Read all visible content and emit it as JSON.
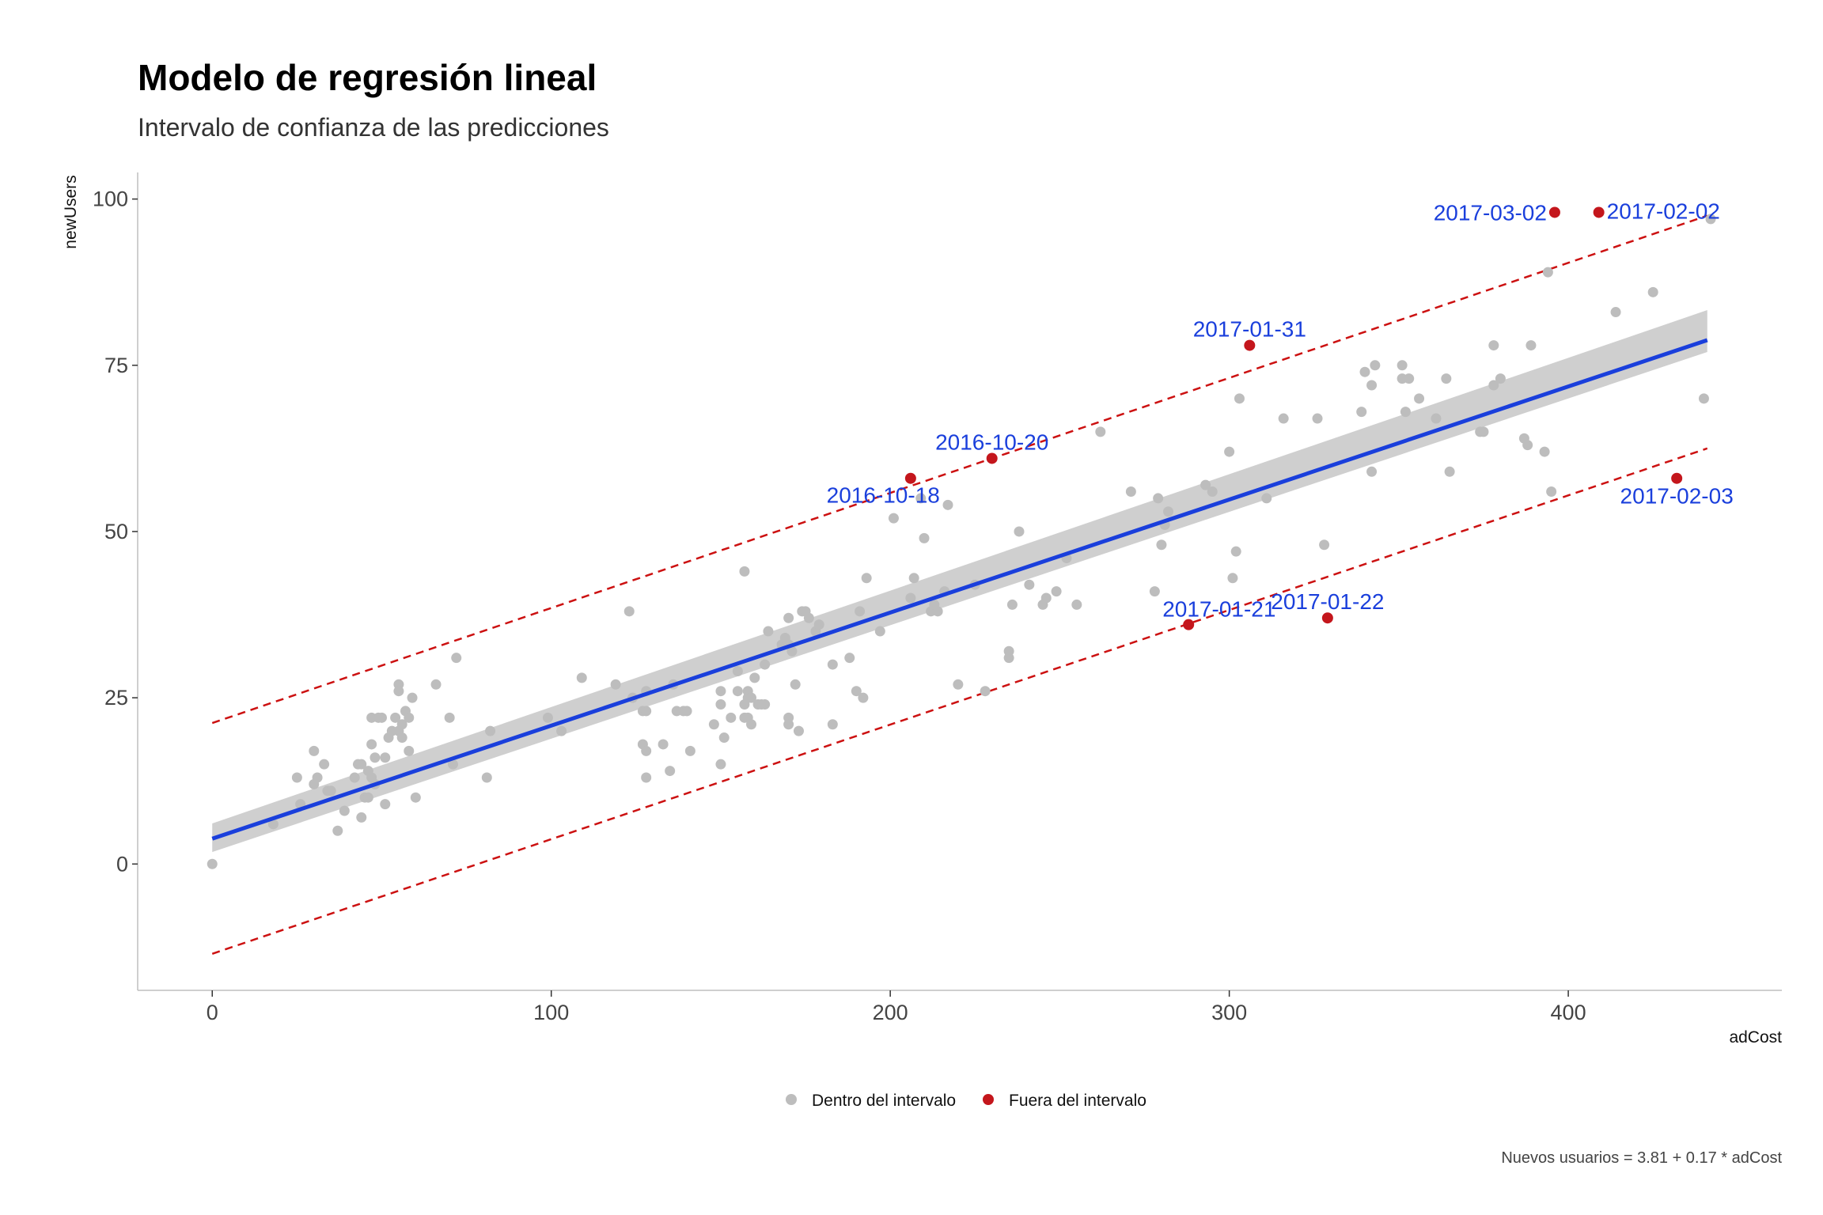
{
  "colors": {
    "inside": "#bdbdbd",
    "outside": "#c4161c",
    "regression_line": "#1a3fdc",
    "confidence_band": "#cfcfcf",
    "interval_lines": "#cc1111",
    "point_labels": "#1a3fdc",
    "axis": "#bfbfbf"
  },
  "chart_data": {
    "type": "scatter",
    "title": "Modelo de regresión lineal",
    "subtitle": "Intervalo de confianza de las predicciones",
    "xlabel": "adCost",
    "ylabel": "newUsers",
    "caption": "Nuevos usuarios = 3.81 + 0.17 * adCost",
    "xlim": [
      -22,
      463
    ],
    "ylim": [
      -19,
      104
    ],
    "x_ticks": [
      0,
      100,
      200,
      300,
      400
    ],
    "y_ticks": [
      0,
      25,
      50,
      75,
      100
    ],
    "grid": false,
    "legend_position": "bottom",
    "legend": [
      {
        "label": "Dentro del intervalo",
        "color_key": "inside"
      },
      {
        "label": "Fuera del intervalo",
        "color_key": "outside"
      }
    ],
    "regression": {
      "intercept": 3.81,
      "slope": 0.17,
      "x_range": [
        0,
        441
      ],
      "confidence_band": {
        "x": [
          0,
          441
        ],
        "lower": [
          1.8,
          77.0
        ],
        "upper": [
          6.1,
          83.3
        ]
      }
    },
    "prediction_interval": {
      "lower": {
        "x": [
          0,
          441
        ],
        "y": [
          -13.5,
          62.5
        ]
      },
      "upper": {
        "x": [
          0,
          441
        ],
        "y": [
          21.2,
          97.5
        ]
      }
    },
    "series": [
      {
        "name": "Dentro del intervalo",
        "points": [
          [
            0,
            0
          ],
          [
            18,
            6
          ],
          [
            25,
            13
          ],
          [
            26,
            9
          ],
          [
            30,
            17
          ],
          [
            30,
            12
          ],
          [
            31,
            13
          ],
          [
            33,
            15
          ],
          [
            34,
            11
          ],
          [
            35,
            11
          ],
          [
            37,
            5
          ],
          [
            39,
            8
          ],
          [
            42,
            13
          ],
          [
            43,
            15
          ],
          [
            44,
            7
          ],
          [
            44,
            15
          ],
          [
            45,
            10
          ],
          [
            46,
            14
          ],
          [
            46,
            10
          ],
          [
            47,
            13
          ],
          [
            47,
            18
          ],
          [
            47,
            22
          ],
          [
            48,
            12
          ],
          [
            48,
            16
          ],
          [
            49,
            22
          ],
          [
            50,
            22
          ],
          [
            51,
            16
          ],
          [
            51,
            9
          ],
          [
            52,
            19
          ],
          [
            53,
            20
          ],
          [
            54,
            22
          ],
          [
            55,
            27
          ],
          [
            55,
            26
          ],
          [
            55,
            20
          ],
          [
            56,
            19
          ],
          [
            56,
            21
          ],
          [
            57,
            23
          ],
          [
            58,
            22
          ],
          [
            58,
            17
          ],
          [
            59,
            25
          ],
          [
            60,
            10
          ],
          [
            66,
            27
          ],
          [
            70,
            22
          ],
          [
            71,
            15
          ],
          [
            72,
            31
          ],
          [
            81,
            13
          ],
          [
            82,
            20
          ],
          [
            99,
            22
          ],
          [
            103,
            20
          ],
          [
            109,
            28
          ],
          [
            119,
            27
          ],
          [
            123,
            38
          ],
          [
            124,
            25
          ],
          [
            127,
            18
          ],
          [
            127,
            23
          ],
          [
            128,
            17
          ],
          [
            128,
            13
          ],
          [
            128,
            26
          ],
          [
            128,
            23
          ],
          [
            133,
            18
          ],
          [
            135,
            14
          ],
          [
            136,
            27
          ],
          [
            137,
            23
          ],
          [
            139,
            23
          ],
          [
            140,
            23
          ],
          [
            141,
            17
          ],
          [
            148,
            21
          ],
          [
            150,
            15
          ],
          [
            150,
            24
          ],
          [
            150,
            26
          ],
          [
            151,
            19
          ],
          [
            153,
            22
          ],
          [
            155,
            29
          ],
          [
            155,
            26
          ],
          [
            157,
            24
          ],
          [
            157,
            22
          ],
          [
            157,
            44
          ],
          [
            158,
            26
          ],
          [
            158,
            22
          ],
          [
            158,
            25
          ],
          [
            159,
            25
          ],
          [
            159,
            21
          ],
          [
            160,
            28
          ],
          [
            161,
            24
          ],
          [
            162,
            24
          ],
          [
            163,
            24
          ],
          [
            163,
            30
          ],
          [
            164,
            35
          ],
          [
            168,
            33
          ],
          [
            169,
            34
          ],
          [
            170,
            37
          ],
          [
            170,
            33
          ],
          [
            170,
            22
          ],
          [
            170,
            21
          ],
          [
            171,
            32
          ],
          [
            172,
            27
          ],
          [
            173,
            20
          ],
          [
            174,
            38
          ],
          [
            175,
            38
          ],
          [
            176,
            37
          ],
          [
            178,
            35
          ],
          [
            179,
            36
          ],
          [
            183,
            30
          ],
          [
            183,
            21
          ],
          [
            188,
            31
          ],
          [
            190,
            26
          ],
          [
            191,
            38
          ],
          [
            192,
            25
          ],
          [
            193,
            43
          ],
          [
            197,
            35
          ],
          [
            201,
            52
          ],
          [
            206,
            40
          ],
          [
            207,
            43
          ],
          [
            209,
            55
          ],
          [
            210,
            49
          ],
          [
            212,
            38
          ],
          [
            213,
            39
          ],
          [
            214,
            38
          ],
          [
            216,
            41
          ],
          [
            217,
            54
          ],
          [
            220,
            27
          ],
          [
            225,
            42
          ],
          [
            228,
            26
          ],
          [
            235,
            32
          ],
          [
            235,
            31
          ],
          [
            236,
            39
          ],
          [
            238,
            50
          ],
          [
            241,
            42
          ],
          [
            245,
            39
          ],
          [
            246,
            40
          ],
          [
            249,
            41
          ],
          [
            252,
            46
          ],
          [
            255,
            39
          ],
          [
            262,
            65
          ],
          [
            271,
            56
          ],
          [
            278,
            41
          ],
          [
            279,
            55
          ],
          [
            280,
            48
          ],
          [
            281,
            51
          ],
          [
            282,
            53
          ],
          [
            293,
            57
          ],
          [
            295,
            56
          ],
          [
            300,
            62
          ],
          [
            301,
            43
          ],
          [
            302,
            47
          ],
          [
            303,
            70
          ],
          [
            311,
            55
          ],
          [
            316,
            67
          ],
          [
            326,
            67
          ],
          [
            328,
            48
          ],
          [
            339,
            68
          ],
          [
            340,
            74
          ],
          [
            342,
            72
          ],
          [
            342,
            59
          ],
          [
            343,
            75
          ],
          [
            351,
            75
          ],
          [
            351,
            73
          ],
          [
            352,
            68
          ],
          [
            353,
            73
          ],
          [
            356,
            70
          ],
          [
            361,
            67
          ],
          [
            364,
            73
          ],
          [
            365,
            59
          ],
          [
            374,
            65
          ],
          [
            375,
            65
          ],
          [
            378,
            72
          ],
          [
            378,
            78
          ],
          [
            380,
            73
          ],
          [
            387,
            64
          ],
          [
            388,
            63
          ],
          [
            389,
            78
          ],
          [
            393,
            62
          ],
          [
            394,
            89
          ],
          [
            395,
            56
          ],
          [
            414,
            83
          ],
          [
            425,
            86
          ],
          [
            440,
            70
          ],
          [
            442,
            97
          ]
        ]
      },
      {
        "name": "Fuera del intervalo",
        "points": [
          {
            "x": 206,
            "y": 58,
            "label": "2016-10-18",
            "anchor": "end"
          },
          {
            "x": 230,
            "y": 61,
            "label": "2016-10-20",
            "anchor": "middle"
          },
          {
            "x": 288,
            "y": 36,
            "label": "2017-01-21",
            "anchor": "start"
          },
          {
            "x": 306,
            "y": 78,
            "label": "2017-01-31",
            "anchor": "middle"
          },
          {
            "x": 329,
            "y": 37,
            "label": "2017-01-22",
            "anchor": "middle"
          },
          {
            "x": 396,
            "y": 98,
            "label": "2017-03-02",
            "anchor": "end"
          },
          {
            "x": 409,
            "y": 98,
            "label": "2017-02-02",
            "anchor": "start"
          },
          {
            "x": 432,
            "y": 58,
            "label": "2017-02-03",
            "anchor": "middle"
          }
        ]
      }
    ]
  }
}
